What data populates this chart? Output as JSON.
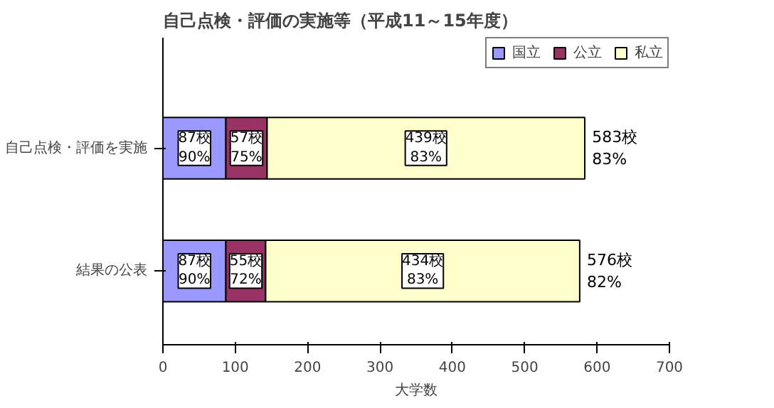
{
  "chart_data": {
    "type": "bar",
    "orientation": "horizontal",
    "stacked": true,
    "title": "自己点検・評価の実施等（平成11～15年度）",
    "xlabel": "大学数",
    "categories": [
      "自己点検・評価を実施",
      "結果の公表"
    ],
    "series": [
      {
        "name": "国立",
        "color": "#9999ff",
        "values": [
          87,
          87
        ],
        "value_labels": [
          "87校\n90%",
          "87校\n90%"
        ]
      },
      {
        "name": "公立",
        "color": "#993366",
        "values": [
          57,
          55
        ],
        "value_labels": [
          "57校\n75%",
          "55校\n72%"
        ]
      },
      {
        "name": "私立",
        "color": "#ffffcc",
        "values": [
          439,
          434
        ],
        "value_labels": [
          "439校\n83%",
          "434校\n83%"
        ]
      }
    ],
    "totals": [
      "583校\n83%",
      "576校\n82%"
    ],
    "xlim": [
      0,
      700
    ],
    "xticks": [
      0,
      100,
      200,
      300,
      400,
      500,
      600,
      700
    ],
    "grid": false,
    "legend": "top right"
  }
}
